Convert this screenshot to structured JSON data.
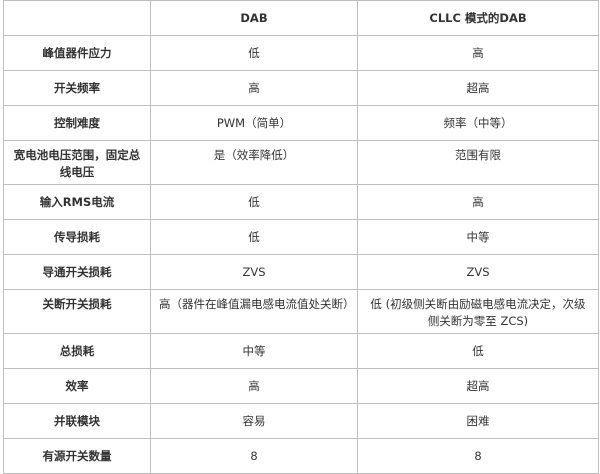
{
  "header": [
    "",
    "DAB",
    "CLLC 模式的DAB"
  ],
  "rows": [
    {
      "label": "峰值器件应力",
      "dab": "低",
      "cllc": "高"
    },
    {
      "label": "开关频率",
      "dab": "高",
      "cllc": "超高"
    },
    {
      "label": "控制难度",
      "dab": "PWM（简单）",
      "cllc": "频率（中等）"
    },
    {
      "label": "宽电池电压范围，固定总线电压",
      "dab": "是（效率降低）",
      "cllc": "范围有限"
    },
    {
      "label": "输入RMS电流",
      "dab": "低",
      "cllc": "高"
    },
    {
      "label": "传导损耗",
      "dab": "低",
      "cllc": "中等"
    },
    {
      "label": "导通开关损耗",
      "dab": "ZVS",
      "cllc": "ZVS"
    },
    {
      "label": "关断开关损耗",
      "dab": "高（器件在峰值漏电感电流值处关断）",
      "cllc": "低 (初级侧关断由励磁电感电流决定，次级侧关断为零至 ZCS)"
    },
    {
      "label": "总损耗",
      "dab": "中等",
      "cllc": "低"
    },
    {
      "label": "效率",
      "dab": "高",
      "cllc": "超高"
    },
    {
      "label": "并联模块",
      "dab": "容易",
      "cllc": "困难"
    },
    {
      "label": "有源开关数量",
      "dab": "8",
      "cllc": "8"
    }
  ]
}
